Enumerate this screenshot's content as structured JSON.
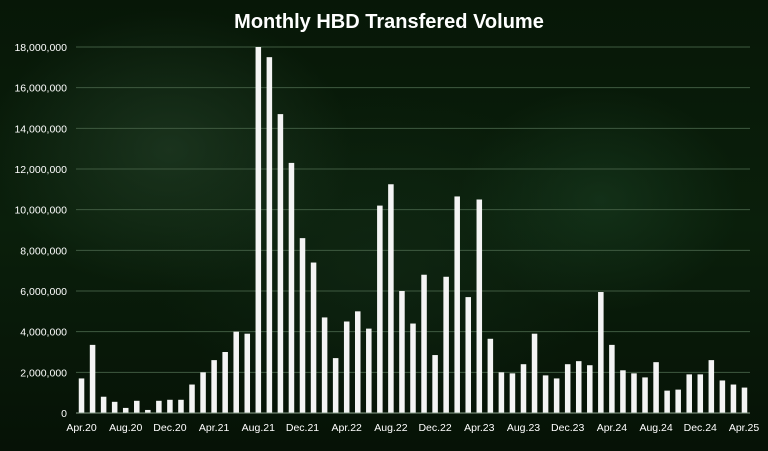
{
  "chart_data": {
    "type": "bar",
    "title": "Monthly HBD Transfered Volume",
    "xlabel": "",
    "ylabel": "",
    "ylim": [
      0,
      18000000
    ],
    "yticks": [
      0,
      2000000,
      4000000,
      6000000,
      8000000,
      10000000,
      12000000,
      14000000,
      16000000,
      18000000
    ],
    "ytick_labels": [
      "0",
      "2,000,000",
      "4,000,000",
      "6,000,000",
      "8,000,000",
      "10,000,000",
      "12,000,000",
      "14,000,000",
      "16,000,000",
      "18,000,000"
    ],
    "grid": true,
    "categories": [
      "Apr.20",
      "May.20",
      "Jun.20",
      "Jul.20",
      "Aug.20",
      "Sep.20",
      "Oct.20",
      "Nov.20",
      "Dec.20",
      "Jan.21",
      "Feb.21",
      "Mar.21",
      "Apr.21",
      "May.21",
      "Jun.21",
      "Jul.21",
      "Aug.21",
      "Sep.21",
      "Oct.21",
      "Nov.21",
      "Dec.21",
      "Jan.22",
      "Feb.22",
      "Mar.22",
      "Apr.22",
      "May.22",
      "Jun.22",
      "Jul.22",
      "Aug.22",
      "Sep.22",
      "Oct.22",
      "Nov.22",
      "Dec.22",
      "Jan.23",
      "Feb.23",
      "Mar.23",
      "Apr.23",
      "May.23",
      "Jun.23",
      "Jul.23",
      "Aug.23",
      "Sep.23",
      "Oct.23",
      "Nov.23",
      "Dec.23",
      "Jan.24",
      "Feb.24",
      "Mar.24",
      "Apr.24",
      "May.24",
      "Jun.24",
      "Jul.24",
      "Aug.24",
      "Sep.24",
      "Oct.24",
      "Nov.24",
      "Dec.24",
      "Jan.25",
      "Feb.25",
      "Mar.25",
      "Apr.25"
    ],
    "x_tick_labels": [
      "Apr.20",
      "Aug.20",
      "Dec.20",
      "Apr.21",
      "Aug.21",
      "Dec.21",
      "Apr.22",
      "Aug.22",
      "Dec.22",
      "Apr.23",
      "Aug.23",
      "Dec.23",
      "Apr.24",
      "Aug.24",
      "Dec.24",
      "Apr.25"
    ],
    "values": [
      1700000,
      3350000,
      800000,
      550000,
      250000,
      600000,
      150000,
      600000,
      650000,
      650000,
      1400000,
      2000000,
      2600000,
      3000000,
      4000000,
      3900000,
      18000000,
      17500000,
      14700000,
      12300000,
      8600000,
      7400000,
      4700000,
      2700000,
      4500000,
      5000000,
      4150000,
      10200000,
      11250000,
      6000000,
      4400000,
      6800000,
      2850000,
      6700000,
      10650000,
      5700000,
      10500000,
      3650000,
      2000000,
      1950000,
      2400000,
      3900000,
      1850000,
      1700000,
      2400000,
      2550000,
      2350000,
      5950000,
      3350000,
      2100000,
      1950000,
      1750000,
      2500000,
      1100000,
      1150000,
      1900000,
      1900000,
      2600000,
      1600000,
      1400000,
      1250000
    ]
  }
}
